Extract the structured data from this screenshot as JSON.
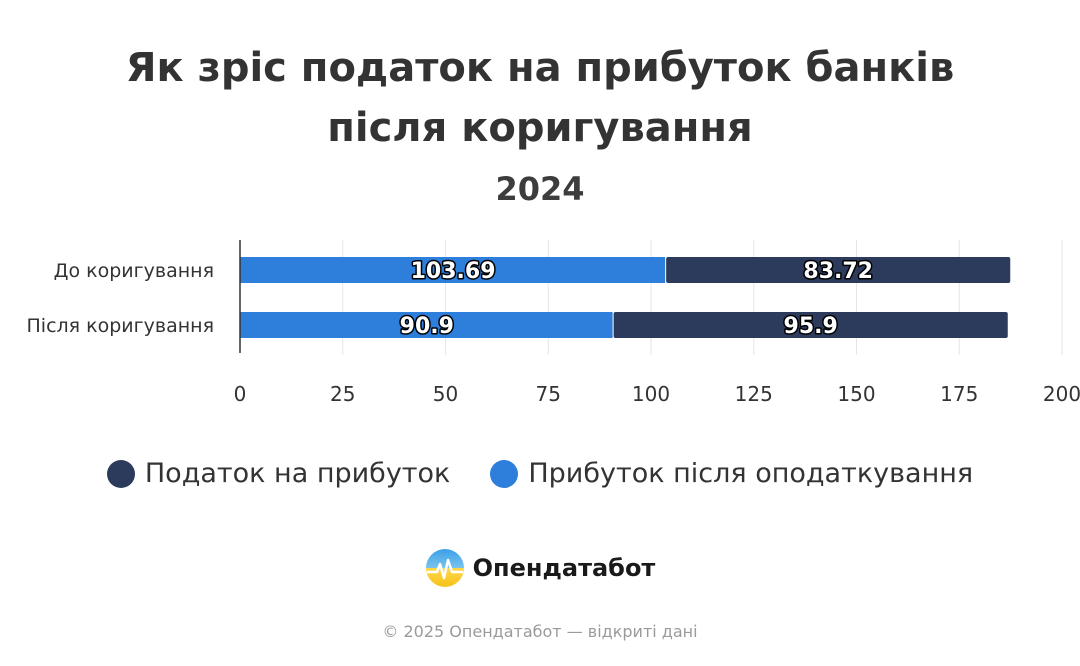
{
  "title_lines": [
    "Як зріс податок на прибуток банків",
    "після коригування"
  ],
  "subtitle": "2024",
  "chart_data": {
    "type": "bar",
    "orientation": "horizontal",
    "stacked": true,
    "title": "Як зріс податок на прибуток банків після коригування",
    "subtitle": "2024",
    "categories": [
      "До коригування",
      "Після коригування"
    ],
    "series": [
      {
        "name": "Прибуток після оподаткування",
        "color": "#2e7fdc",
        "values": [
          103.69,
          90.9
        ]
      },
      {
        "name": "Податок на прибуток",
        "color": "#2c3a5c",
        "values": [
          83.72,
          95.9
        ]
      }
    ],
    "xlim": [
      0,
      200
    ],
    "xticks": [
      "0",
      "25",
      "50",
      "75",
      "100",
      "125",
      "150",
      "175",
      "200"
    ],
    "data_labels": [
      "103.69",
      "83.72",
      "90.9",
      "95.9"
    ],
    "grid": true,
    "legend": "bottom"
  },
  "legend": [
    {
      "label": "Податок на прибуток",
      "color": "#2c3a5c"
    },
    {
      "label": "Прибуток після оподаткування",
      "color": "#2e7fdc"
    }
  ],
  "brand": {
    "name": "Опендатабот",
    "icon": "opendatabot-logo-icon"
  },
  "footer": "© 2025 Опендатабот — відкриті дані"
}
